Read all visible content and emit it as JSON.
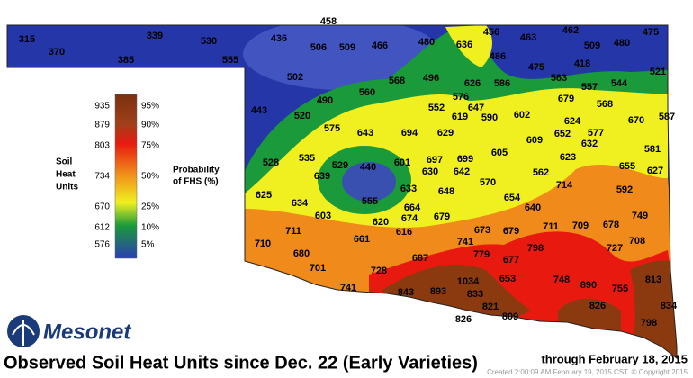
{
  "title": "Observed Soil Heat Units since Dec. 22 (Early Varieties)",
  "subtitle": "through February 18, 2015",
  "credit": "Created 2:00:09 AM February 19, 2015 CST. © Copyright 2015",
  "logo": "Mesonet",
  "legend": {
    "left_title": [
      "Soil",
      "Heat",
      "Units"
    ],
    "right_title": [
      "Probability",
      "of FHS (%)"
    ],
    "units": [
      935,
      879,
      803,
      734,
      670,
      612,
      576
    ],
    "percents": [
      "95%",
      "90%",
      "75%",
      "50%",
      "25%",
      "10%",
      "5%"
    ]
  },
  "stations": [
    315,
    370,
    339,
    385,
    530,
    555,
    458,
    436,
    506,
    509,
    466,
    480,
    636,
    456,
    463,
    462,
    509,
    480,
    475,
    486,
    418,
    475,
    521,
    502,
    568,
    496,
    626,
    586,
    563,
    557,
    544,
    560,
    490,
    576,
    679,
    568,
    443,
    520,
    552,
    647,
    619,
    590,
    602,
    670,
    587,
    624,
    652,
    577,
    575,
    643,
    694,
    629,
    609,
    632,
    581,
    605,
    623,
    699,
    697,
    601,
    528,
    535,
    529,
    440,
    630,
    642,
    655,
    627,
    639,
    562,
    570,
    714,
    592,
    633,
    648,
    625,
    634,
    555,
    654,
    664,
    640,
    603,
    620,
    674,
    679,
    749,
    711,
    709,
    678,
    616,
    711,
    673,
    679,
    661,
    741,
    727,
    708,
    710,
    680,
    798,
    779,
    677,
    687,
    701,
    728,
    653,
    748,
    890,
    755,
    813,
    1034,
    741,
    843,
    893,
    833,
    821,
    834,
    826,
    809,
    826,
    798
  ]
}
